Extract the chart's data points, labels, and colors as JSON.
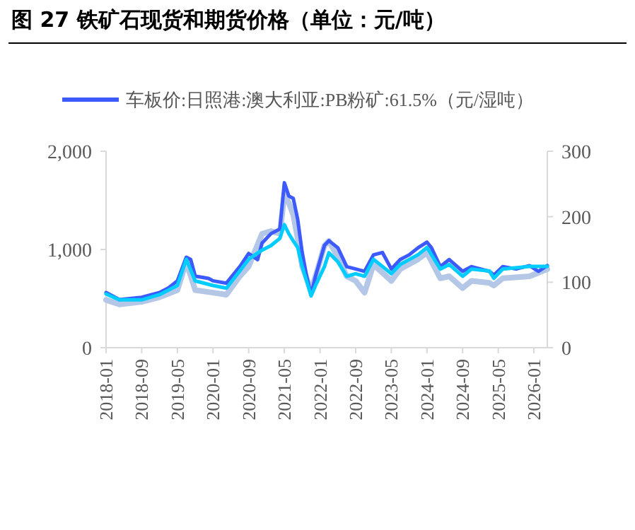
{
  "chart_data": {
    "type": "line",
    "title": "图 27 铁矿石现货和期货价格（单位：元/吨）",
    "legend": "top left",
    "grid": false,
    "line_style": "solid",
    "xlim": [
      "2018-01",
      "2026-04"
    ],
    "xticks": [
      "2018-01",
      "2018-09",
      "2019-05",
      "2020-01",
      "2020-09",
      "2021-05",
      "2022-01",
      "2022-09",
      "2023-05",
      "2024-01",
      "2024-09",
      "2025-05",
      "2026-01"
    ],
    "ylim": [
      0,
      2000
    ],
    "yticks": [
      0,
      {
        "value": 1000,
        "label": "1,000"
      },
      {
        "value": 2000,
        "label": "2,000"
      }
    ],
    "y2lim": [
      0,
      300
    ],
    "y2ticks": [
      0,
      100,
      200,
      300
    ],
    "series": [
      {
        "color": "#b4c7e7",
        "axis": "y2",
        "x": [
          "2018-01",
          "2018-04",
          "2018-09",
          "2019-01",
          "2019-05",
          "2019-07",
          "2019-09",
          "2020-01",
          "2020-04",
          "2020-07",
          "2020-09",
          "2020-12",
          "2021-02",
          "2021-04",
          "2021-05",
          "2021-06",
          "2021-07",
          "2021-08",
          "2021-09",
          "2021-11",
          "2021-12",
          "2022-02",
          "2022-03",
          "2022-05",
          "2022-07",
          "2022-09",
          "2022-11",
          "2023-01",
          "2023-05",
          "2023-07",
          "2023-11",
          "2024-01",
          "2024-04",
          "2024-06",
          "2024-09",
          "2024-11",
          "2025-03",
          "2025-04",
          "2025-06",
          "2025-12",
          "2026-04"
        ],
        "values": [
          73,
          66,
          70,
          77,
          88,
          131,
          88,
          84,
          81,
          109,
          124,
          174,
          178,
          174,
          235,
          221,
          203,
          167,
          124,
          88,
          109,
          156,
          163,
          138,
          109,
          102,
          84,
          127,
          102,
          120,
          135,
          145,
          106,
          109,
          91,
          102,
          99,
          95,
          106,
          109,
          120
        ]
      },
      {
        "name": "车板价:日照港:澳大利亚:PB粉矿:61.5%（元/湿吨）",
        "color": "#3d5afe",
        "x": [
          "2018-01",
          "2018-04",
          "2018-09",
          "2019-01",
          "2019-03",
          "2019-05",
          "2019-07",
          "2019-08",
          "2019-09",
          "2019-12",
          "2020-01",
          "2020-04",
          "2020-07",
          "2020-09",
          "2020-11",
          "2020-12",
          "2021-02",
          "2021-04",
          "2021-05",
          "2021-06",
          "2021-07",
          "2021-08",
          "2021-09",
          "2021-10",
          "2021-11",
          "2021-12",
          "2022-02",
          "2022-03",
          "2022-05",
          "2022-07",
          "2022-09",
          "2022-11",
          "2023-01",
          "2023-03",
          "2023-05",
          "2023-07",
          "2023-09",
          "2023-11",
          "2024-01",
          "2024-02",
          "2024-04",
          "2024-06",
          "2024-09",
          "2024-11",
          "2025-01",
          "2025-03",
          "2025-04",
          "2025-06",
          "2025-09",
          "2025-12",
          "2026-02",
          "2026-04"
        ],
        "values": [
          561,
          489,
          513,
          561,
          609,
          681,
          921,
          897,
          729,
          705,
          681,
          657,
          825,
          959,
          897,
          1065,
          1161,
          1209,
          1679,
          1544,
          1520,
          1305,
          969,
          729,
          537,
          729,
          1041,
          1089,
          1017,
          825,
          801,
          777,
          945,
          969,
          801,
          897,
          945,
          1017,
          1074,
          1017,
          825,
          897,
          777,
          825,
          801,
          777,
          739,
          825,
          801,
          835,
          777,
          835
        ]
      },
      {
        "color": "#00ccff",
        "axis": "y2",
        "x": [
          "2018-01",
          "2018-04",
          "2018-09",
          "2019-01",
          "2019-05",
          "2019-07",
          "2019-09",
          "2020-01",
          "2020-04",
          "2020-07",
          "2020-09",
          "2020-12",
          "2021-02",
          "2021-04",
          "2021-05",
          "2021-06",
          "2021-07",
          "2021-08",
          "2021-09",
          "2021-11",
          "2021-12",
          "2022-02",
          "2022-03",
          "2022-05",
          "2022-07",
          "2022-09",
          "2022-11",
          "2023-01",
          "2023-05",
          "2023-07",
          "2023-11",
          "2024-01",
          "2024-04",
          "2024-06",
          "2024-09",
          "2024-11",
          "2025-03",
          "2025-04",
          "2025-06",
          "2025-12",
          "2026-04"
        ],
        "values": [
          82,
          73,
          73,
          81,
          95,
          135,
          102,
          95,
          91,
          117,
          135,
          149,
          156,
          167,
          188,
          174,
          163,
          153,
          124,
          79,
          95,
          124,
          145,
          131,
          109,
          113,
          109,
          135,
          113,
          127,
          142,
          153,
          120,
          127,
          109,
          120,
          117,
          106,
          120,
          124,
          124
        ]
      }
    ]
  }
}
